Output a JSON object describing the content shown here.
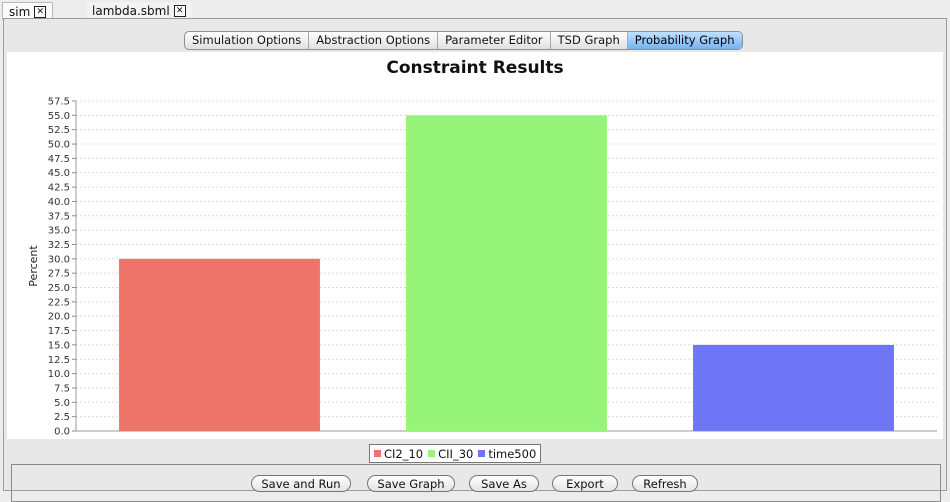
{
  "file_tabs": [
    {
      "label": "sim",
      "close": "✕"
    },
    {
      "label": "lambda.sbml",
      "close": "✕"
    }
  ],
  "view_tabs": [
    "Simulation Options",
    "Abstraction Options",
    "Parameter Editor",
    "TSD Graph",
    "Probability Graph"
  ],
  "active_view_tab": "Probability Graph",
  "buttons": {
    "save_and_run": "Save and Run",
    "save_graph": "Save Graph",
    "save_as": "Save As",
    "export": "Export",
    "refresh": "Refresh"
  },
  "chart_data": {
    "type": "bar",
    "title": "Constraint Results",
    "ylabel": "Percent",
    "xlabel": "",
    "ylim": [
      0,
      57.5
    ],
    "ytick_step": 2.5,
    "grid": true,
    "legend_position": "bottom-center",
    "series": [
      {
        "name": "CI2_10",
        "value": 30,
        "color": "#ee7369"
      },
      {
        "name": "CII_30",
        "value": 55,
        "color": "#96f478"
      },
      {
        "name": "time500",
        "value": 15,
        "color": "#6e76f6"
      }
    ]
  }
}
